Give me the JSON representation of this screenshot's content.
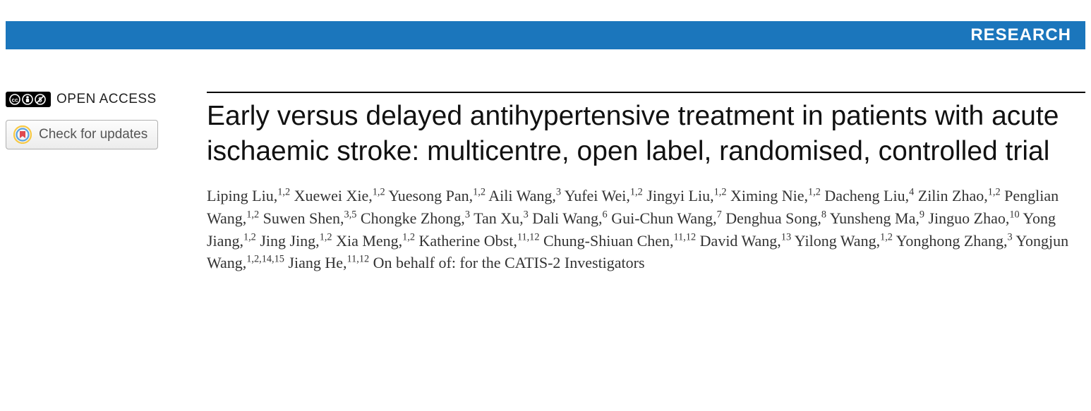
{
  "banner": {
    "label": "RESEARCH",
    "background_color": "#1b76bc",
    "text_color": "#ffffff"
  },
  "sidebar": {
    "open_access_label": "OPEN ACCESS",
    "cc_badge": {
      "bg": "#000000",
      "fg": "#ffffff"
    },
    "check_updates_label": "Check for updates",
    "check_updates_ring_colors": {
      "outer": "#f7c945",
      "mid": "#5aa2e0",
      "inner": "#e0494f"
    }
  },
  "article": {
    "title": "Early versus delayed antihypertensive treatment in patients with acute ischaemic stroke: multicentre, open label, randomised, controlled trial",
    "title_fontsize": 39,
    "author_fontsize": 22,
    "authors": [
      {
        "name": "Liping Liu",
        "affil": "1,2"
      },
      {
        "name": "Xuewei Xie",
        "affil": "1,2"
      },
      {
        "name": "Yuesong Pan",
        "affil": "1,2"
      },
      {
        "name": "Aili Wang",
        "affil": "3"
      },
      {
        "name": "Yufei Wei",
        "affil": "1,2"
      },
      {
        "name": "Jingyi Liu",
        "affil": "1,2"
      },
      {
        "name": "Ximing Nie",
        "affil": "1,2"
      },
      {
        "name": "Dacheng Liu",
        "affil": "4"
      },
      {
        "name": "Zilin Zhao",
        "affil": "1,2"
      },
      {
        "name": "Penglian Wang",
        "affil": "1,2"
      },
      {
        "name": "Suwen Shen",
        "affil": "3,5"
      },
      {
        "name": "Chongke Zhong",
        "affil": "3"
      },
      {
        "name": "Tan Xu",
        "affil": "3"
      },
      {
        "name": "Dali Wang",
        "affil": "6"
      },
      {
        "name": "Gui-Chun Wang",
        "affil": "7"
      },
      {
        "name": "Denghua Song",
        "affil": "8"
      },
      {
        "name": "Yunsheng Ma",
        "affil": "9"
      },
      {
        "name": "Jinguo Zhao",
        "affil": "10"
      },
      {
        "name": "Yong Jiang",
        "affil": "1,2"
      },
      {
        "name": "Jing Jing",
        "affil": "1,2"
      },
      {
        "name": "Xia Meng",
        "affil": "1,2"
      },
      {
        "name": "Katherine Obst",
        "affil": "11,12"
      },
      {
        "name": "Chung-Shiuan Chen",
        "affil": "11,12"
      },
      {
        "name": "David Wang",
        "affil": "13"
      },
      {
        "name": "Yilong Wang",
        "affil": "1,2"
      },
      {
        "name": "Yonghong Zhang",
        "affil": "3"
      },
      {
        "name": "Yongjun Wang",
        "affil": "1,2,14,15"
      },
      {
        "name": "Jiang He",
        "affil": "11,12"
      }
    ],
    "on_behalf_text": "On behalf of: for the CATIS-2 Investigators"
  },
  "colors": {
    "rule": "#000000",
    "text": "#333333",
    "title": "#111111"
  }
}
